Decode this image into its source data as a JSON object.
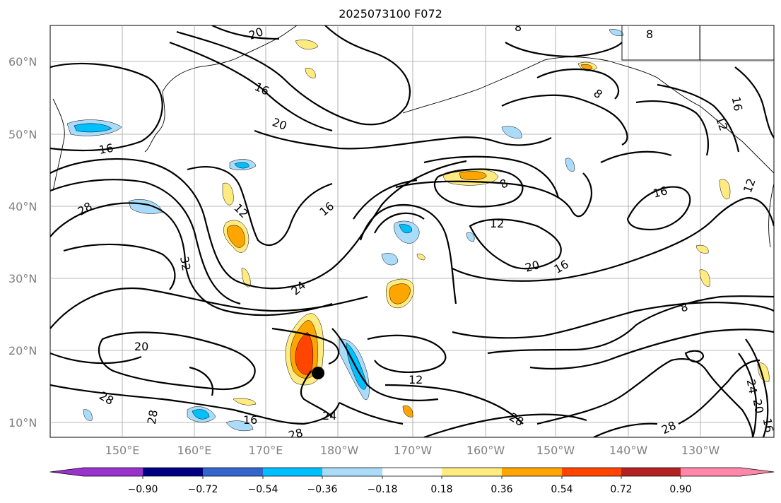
{
  "title": "2025073100 F072",
  "lat_labels": [
    "60°N",
    "50°N",
    "40°N",
    "30°N",
    "20°N",
    "10°N"
  ],
  "lon_labels": [
    "150°E",
    "160°E",
    "170°E",
    "180°W",
    "170°W",
    "160°W",
    "150°W",
    "140°W",
    "130°W"
  ],
  "contour_labels": {
    "c20_top": "20",
    "c16_nw": "16",
    "c20_nw": "20",
    "c16_w": "16",
    "c28_w": "28",
    "c12_w": "12",
    "c32": "32",
    "c16_mid": "16",
    "c24": "24",
    "c20_sw": "20",
    "c28_sw": "28",
    "c28_sw2": "28",
    "c16_s": "16",
    "c28_s": "28",
    "c24_s": "24",
    "c12_s": "12",
    "c8_ne": "8",
    "c8_top": "8",
    "c8_center": "8",
    "c12_center": "12",
    "c20_e": "20",
    "c16_e": "16",
    "c16_ne": "16",
    "c12_ne": "12",
    "c8_e": "8",
    "c28_se": "28",
    "c28_se2": "28",
    "c24_se": "24",
    "c20_se": "20",
    "c16_se": "16",
    "c12_far": "12",
    "c16_far": "16",
    "c8_far": "8"
  },
  "colorbar": {
    "ticks": [
      "−0.90",
      "−0.72",
      "−0.54",
      "−0.36",
      "−0.18",
      "0.18",
      "0.36",
      "0.54",
      "0.72",
      "0.90"
    ],
    "colors": [
      "#9933cc",
      "#000080",
      "#3366cc",
      "#00bfff",
      "#aadcfa",
      "#ffffff",
      "#ffeb80",
      "#ffa500",
      "#ff4500",
      "#b22222",
      "#ff88aa"
    ]
  },
  "marker": "typhoon-center"
}
